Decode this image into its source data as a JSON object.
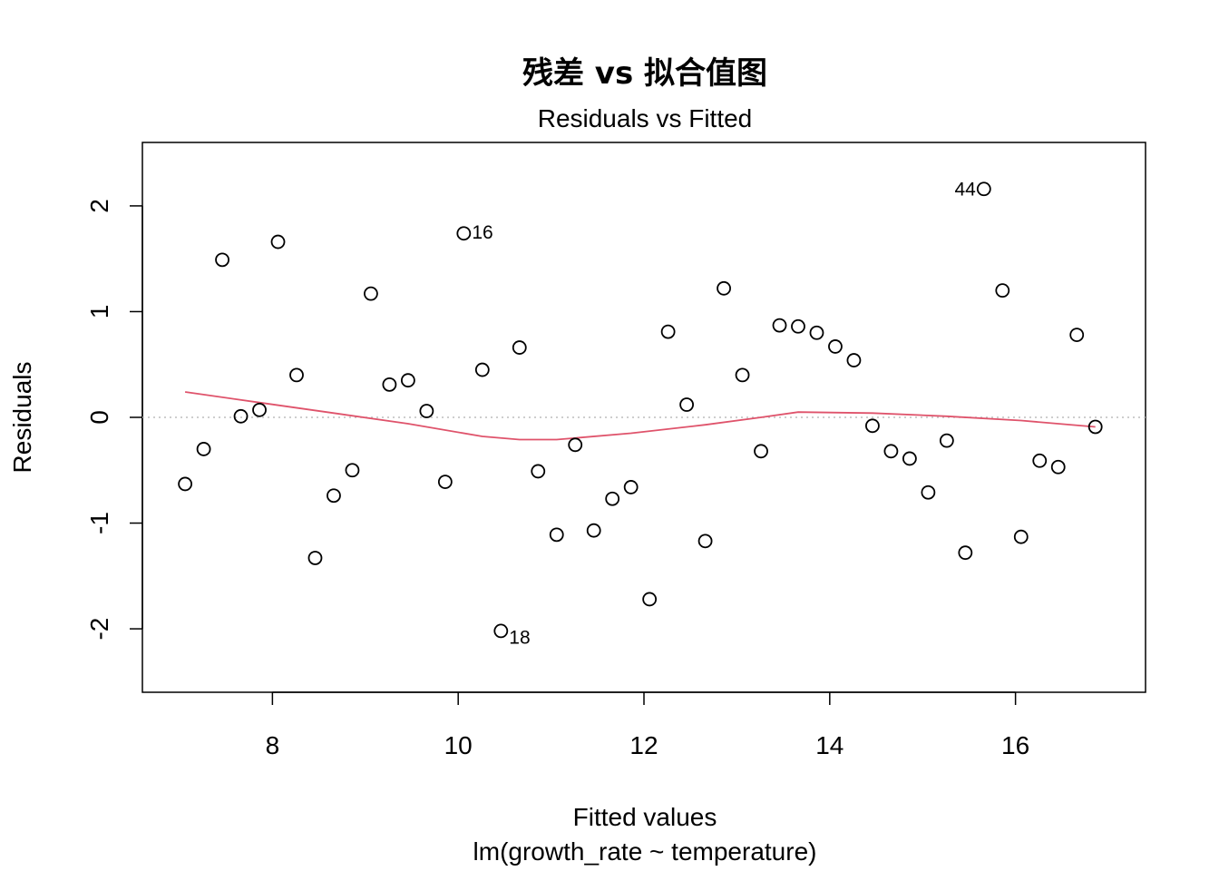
{
  "chart_data": {
    "type": "scatter",
    "title": "残差 vs 拟合值图",
    "subtitle": "Residuals vs Fitted",
    "xlabel": "Fitted values",
    "xlabel_sub": "lm(growth_rate ~ temperature)",
    "ylabel": "Residuals",
    "xlim": [
      6.6,
      17.4
    ],
    "ylim": [
      -2.6,
      2.6
    ],
    "x_ticks": [
      8,
      10,
      12,
      14,
      16
    ],
    "y_ticks": [
      -2,
      -1,
      0,
      1,
      2
    ],
    "x_tick_labels": [
      "8",
      "10",
      "12",
      "14",
      "16"
    ],
    "y_tick_labels": [
      "-2",
      "-1",
      "0",
      "1",
      "2"
    ],
    "grid": false,
    "reference_line": {
      "y": 0,
      "style": "dotted",
      "color": "#BEBEBE"
    },
    "smoother_color": "#DF536B",
    "point_color": "#000000",
    "points": [
      {
        "x": 7.06,
        "y": -0.63
      },
      {
        "x": 7.26,
        "y": -0.3
      },
      {
        "x": 7.46,
        "y": 1.49
      },
      {
        "x": 7.66,
        "y": 0.01
      },
      {
        "x": 7.86,
        "y": 0.07
      },
      {
        "x": 8.06,
        "y": 1.66
      },
      {
        "x": 8.26,
        "y": 0.4
      },
      {
        "x": 8.46,
        "y": -1.33
      },
      {
        "x": 8.66,
        "y": -0.74
      },
      {
        "x": 8.86,
        "y": -0.5
      },
      {
        "x": 9.06,
        "y": 1.17
      },
      {
        "x": 9.26,
        "y": 0.31
      },
      {
        "x": 9.46,
        "y": 0.35
      },
      {
        "x": 9.66,
        "y": 0.06
      },
      {
        "x": 9.86,
        "y": -0.61
      },
      {
        "x": 10.06,
        "y": 1.74,
        "label": "16"
      },
      {
        "x": 10.26,
        "y": 0.45
      },
      {
        "x": 10.46,
        "y": -2.02,
        "label": "18"
      },
      {
        "x": 10.66,
        "y": 0.66
      },
      {
        "x": 10.86,
        "y": -0.51
      },
      {
        "x": 11.06,
        "y": -1.11
      },
      {
        "x": 11.26,
        "y": -0.26
      },
      {
        "x": 11.46,
        "y": -1.07
      },
      {
        "x": 11.66,
        "y": -0.77
      },
      {
        "x": 11.86,
        "y": -0.66
      },
      {
        "x": 12.06,
        "y": -1.72
      },
      {
        "x": 12.26,
        "y": 0.81
      },
      {
        "x": 12.46,
        "y": 0.12
      },
      {
        "x": 12.66,
        "y": -1.17
      },
      {
        "x": 12.86,
        "y": 1.22
      },
      {
        "x": 13.06,
        "y": 0.4
      },
      {
        "x": 13.26,
        "y": -0.32
      },
      {
        "x": 13.46,
        "y": 0.87
      },
      {
        "x": 13.66,
        "y": 0.86
      },
      {
        "x": 13.86,
        "y": 0.8
      },
      {
        "x": 14.06,
        "y": 0.67
      },
      {
        "x": 14.26,
        "y": 0.54
      },
      {
        "x": 14.46,
        "y": -0.08
      },
      {
        "x": 14.66,
        "y": -0.32
      },
      {
        "x": 14.86,
        "y": -0.39
      },
      {
        "x": 15.06,
        "y": -0.71
      },
      {
        "x": 15.26,
        "y": -0.22
      },
      {
        "x": 15.46,
        "y": -1.28
      },
      {
        "x": 15.66,
        "y": 2.16,
        "label": "44"
      },
      {
        "x": 15.86,
        "y": 1.2
      },
      {
        "x": 16.06,
        "y": -1.13
      },
      {
        "x": 16.26,
        "y": -0.41
      },
      {
        "x": 16.46,
        "y": -0.47
      },
      {
        "x": 16.66,
        "y": 0.78
      },
      {
        "x": 16.86,
        "y": -0.09
      }
    ],
    "smoother": [
      {
        "x": 7.06,
        "y": 0.24
      },
      {
        "x": 7.86,
        "y": 0.14
      },
      {
        "x": 8.66,
        "y": 0.04
      },
      {
        "x": 9.46,
        "y": -0.06
      },
      {
        "x": 10.26,
        "y": -0.18
      },
      {
        "x": 10.66,
        "y": -0.21
      },
      {
        "x": 11.06,
        "y": -0.21
      },
      {
        "x": 11.86,
        "y": -0.15
      },
      {
        "x": 12.66,
        "y": -0.07
      },
      {
        "x": 13.26,
        "y": 0.0
      },
      {
        "x": 13.66,
        "y": 0.05
      },
      {
        "x": 14.46,
        "y": 0.04
      },
      {
        "x": 15.26,
        "y": 0.01
      },
      {
        "x": 16.06,
        "y": -0.03
      },
      {
        "x": 16.86,
        "y": -0.09
      }
    ]
  }
}
